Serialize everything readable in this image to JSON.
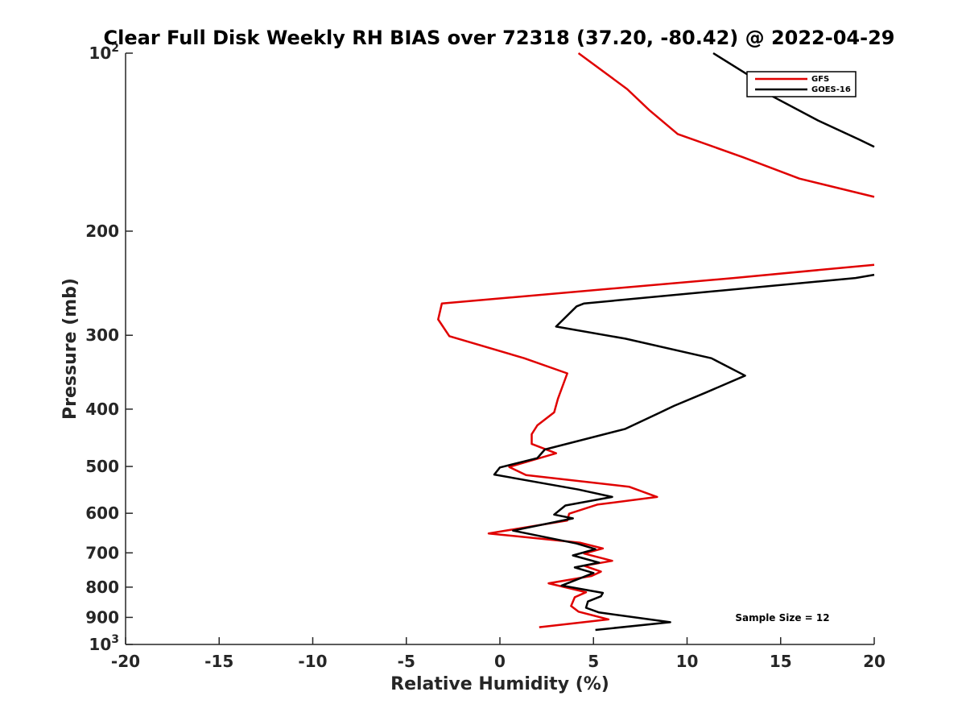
{
  "chart_data": {
    "type": "line",
    "title": "Clear Full Disk Weekly RH BIAS over 72318 (37.20, -80.42) @ 2022-04-29",
    "xlabel": "Relative Humidity (%)",
    "ylabel": "Pressure (mb)",
    "xlim": [
      -20,
      20
    ],
    "ylim": [
      100,
      1000
    ],
    "y_scale": "log",
    "y_reversed": true,
    "x_ticks": [
      "-20",
      "-15",
      "-10",
      "-5",
      "0",
      "5",
      "10",
      "15",
      "20"
    ],
    "x_tick_values": [
      -20,
      -15,
      -10,
      -5,
      0,
      5,
      10,
      15,
      20
    ],
    "y_ticks": [
      {
        "value": 100,
        "base": "10",
        "exp": "2"
      },
      {
        "value": 200,
        "base": "200",
        "exp": ""
      },
      {
        "value": 300,
        "base": "300",
        "exp": ""
      },
      {
        "value": 400,
        "base": "400",
        "exp": ""
      },
      {
        "value": 500,
        "base": "500",
        "exp": ""
      },
      {
        "value": 600,
        "base": "600",
        "exp": ""
      },
      {
        "value": 700,
        "base": "700",
        "exp": ""
      },
      {
        "value": 800,
        "base": "800",
        "exp": ""
      },
      {
        "value": 900,
        "base": "900",
        "exp": ""
      },
      {
        "value": 1000,
        "base": "10",
        "exp": "3"
      }
    ],
    "grid": false,
    "legend_position": "top-right",
    "annotation": "Sample Size = 12",
    "series": [
      {
        "name": "GFS",
        "color": "#e00000",
        "segments": [
          [
            [
              4.2,
              100
            ],
            [
              6.8,
              115
            ],
            [
              8.0,
              125
            ],
            [
              9.5,
              137
            ],
            [
              13.0,
              150
            ],
            [
              16.0,
              163
            ],
            [
              20.0,
              175
            ]
          ],
          [
            [
              20.0,
              228
            ],
            [
              12.5,
              240
            ],
            [
              -3.1,
              265
            ],
            [
              -3.3,
              282
            ],
            [
              -2.7,
              301
            ],
            [
              1.3,
              328
            ],
            [
              3.6,
              348
            ],
            [
              3.1,
              384
            ],
            [
              2.9,
              405
            ],
            [
              2.0,
              426
            ],
            [
              1.7,
              441
            ],
            [
              1.7,
              458
            ],
            [
              3.0,
              475
            ],
            [
              0.5,
              501
            ],
            [
              1.4,
              517
            ],
            [
              6.9,
              541
            ],
            [
              8.4,
              563
            ],
            [
              5.2,
              580
            ],
            [
              3.7,
              601
            ],
            [
              3.6,
              617
            ],
            [
              -0.6,
              649
            ],
            [
              4.3,
              673
            ],
            [
              5.5,
              688
            ],
            [
              4.5,
              702
            ],
            [
              6.0,
              722
            ],
            [
              4.5,
              736
            ],
            [
              5.4,
              753
            ],
            [
              4.9,
              766
            ],
            [
              2.6,
              788
            ],
            [
              4.6,
              816
            ],
            [
              4.0,
              832
            ],
            [
              3.8,
              861
            ],
            [
              4.2,
              880
            ],
            [
              5.8,
              907
            ],
            [
              2.1,
              935
            ]
          ]
        ]
      },
      {
        "name": "GOES-16",
        "color": "#000000",
        "segments": [
          [
            [
              11.4,
              100
            ],
            [
              13.5,
              110
            ],
            [
              14.5,
              118
            ],
            [
              17.0,
              130
            ],
            [
              19.2,
              140
            ],
            [
              20.0,
              144
            ]
          ],
          [
            [
              20.0,
              237
            ],
            [
              19.0,
              240
            ],
            [
              4.5,
              265
            ],
            [
              4.1,
              268
            ],
            [
              3.0,
              290
            ],
            [
              6.7,
              304
            ],
            [
              11.3,
              328
            ],
            [
              13.1,
              351
            ],
            [
              11.0,
              375
            ],
            [
              9.3,
              395
            ],
            [
              8.5,
              406
            ],
            [
              6.7,
              432
            ],
            [
              2.4,
              468
            ],
            [
              2.0,
              484
            ],
            [
              0.0,
              502
            ],
            [
              -0.3,
              516
            ],
            [
              4.2,
              547
            ],
            [
              6.0,
              563
            ],
            [
              3.5,
              582
            ],
            [
              2.9,
              603
            ],
            [
              3.9,
              612
            ],
            [
              0.7,
              642
            ],
            [
              4.1,
              675
            ],
            [
              5.1,
              690
            ],
            [
              3.9,
              707
            ],
            [
              5.3,
              727
            ],
            [
              4.0,
              741
            ],
            [
              5.0,
              757
            ],
            [
              3.3,
              795
            ],
            [
              5.5,
              818
            ],
            [
              5.4,
              829
            ],
            [
              4.7,
              846
            ],
            [
              4.6,
              867
            ],
            [
              5.3,
              883
            ],
            [
              9.1,
              917
            ],
            [
              5.1,
              945
            ]
          ]
        ]
      }
    ]
  }
}
